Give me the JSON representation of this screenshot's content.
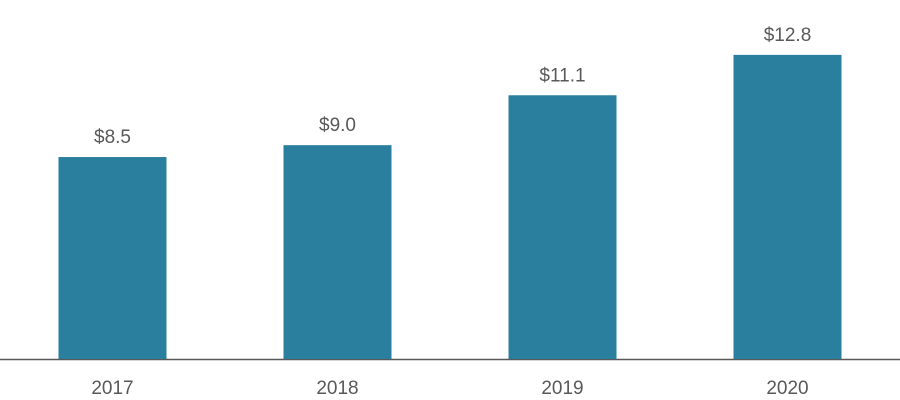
{
  "chart_data": {
    "type": "bar",
    "categories": [
      "2017",
      "2018",
      "2019",
      "2020"
    ],
    "values": [
      8.5,
      9.0,
      11.1,
      12.8
    ],
    "value_labels": [
      "$8.5",
      "$9.0",
      "$11.1",
      "$12.8"
    ],
    "color": "#2a7f9e"
  }
}
